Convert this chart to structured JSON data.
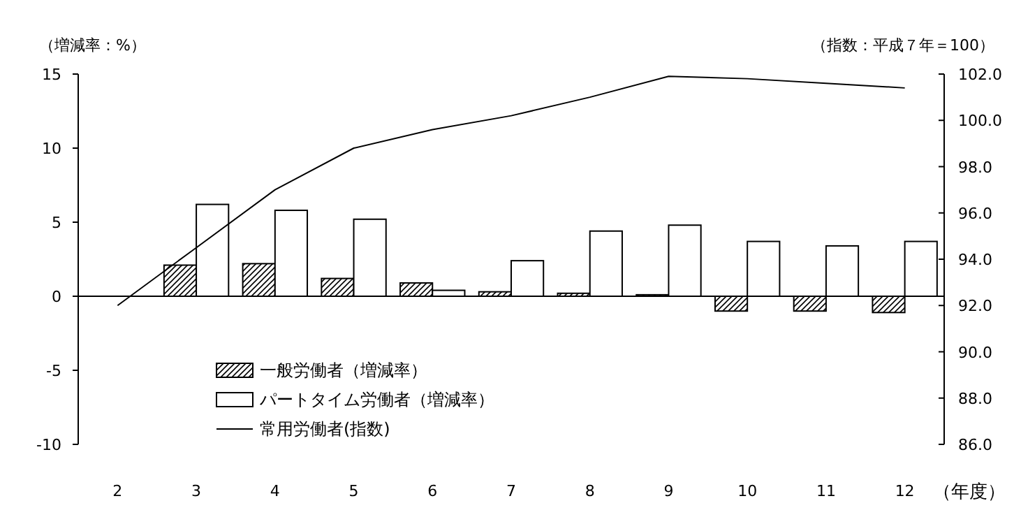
{
  "chart_data": {
    "type": "bar",
    "ylabel": "（増減率：%）",
    "y2label": "（指数：平成７年＝100）",
    "xlabel": "（年度）",
    "categories": [
      "2",
      "3",
      "4",
      "5",
      "6",
      "7",
      "8",
      "9",
      "10",
      "11",
      "12"
    ],
    "series": [
      {
        "name": "一般労働者（増減率）",
        "color": "#000000",
        "values": [
          null,
          2.1,
          2.2,
          1.2,
          0.9,
          0.3,
          0.2,
          0.1,
          -1.0,
          -1.0,
          -1.1
        ]
      },
      {
        "name": "パートタイム労働者（増減率）",
        "color": "#ffffff",
        "values": [
          null,
          6.2,
          5.8,
          5.2,
          0.4,
          2.4,
          4.4,
          4.8,
          3.7,
          3.4,
          3.7
        ]
      },
      {
        "name": "常用労働者(指数)",
        "type": "line",
        "axis": "y2",
        "color": "#000000",
        "values": [
          92.0,
          94.5,
          97.0,
          98.8,
          99.6,
          100.2,
          101.0,
          101.9,
          101.8,
          101.6,
          101.4
        ]
      }
    ],
    "ylim": [
      -10,
      15
    ],
    "yticks": [
      -10,
      -5,
      0,
      5,
      10,
      15
    ],
    "y2lim": [
      86,
      102
    ],
    "y2ticks": [
      {
        "value": 86,
        "label": "86.0"
      },
      {
        "value": 88,
        "label": "88.0"
      },
      {
        "value": 90,
        "label": "90.0"
      },
      {
        "value": 92,
        "label": "92.0"
      },
      {
        "value": 94,
        "label": "94.0"
      },
      {
        "value": 96,
        "label": "96.0"
      },
      {
        "value": 98,
        "label": "98.0"
      },
      {
        "value": 100,
        "label": "100.0"
      },
      {
        "value": 102,
        "label": "102.0"
      }
    ],
    "legend": "bottom left"
  }
}
